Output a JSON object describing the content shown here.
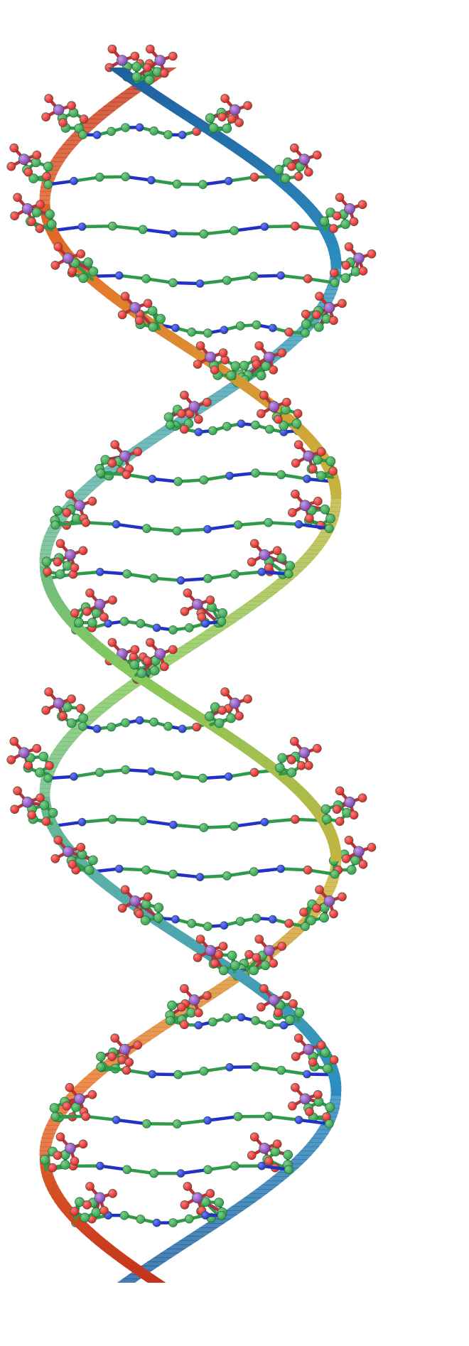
{
  "image": {
    "subject": "dna-double-helix-ball-and-stick",
    "strand_a": {
      "name": "backbone-ribbon-a",
      "gradient_colors": [
        "#c4321d",
        "#e8742a",
        "#c9b23c",
        "#86c95b",
        "#5bb0a8",
        "#2e8fbf",
        "#1f5f9e"
      ]
    },
    "strand_b": {
      "name": "backbone-ribbon-b",
      "gradient_colors": [
        "#1f5f9e",
        "#2e8fbf",
        "#5bb0a8",
        "#86c95b",
        "#c9b23c",
        "#e8742a",
        "#c4321d"
      ]
    },
    "atom_colors": {
      "carbon": "#2f9a4a",
      "carbon_highlight": "#7fd08a",
      "nitrogen": "#2230c8",
      "nitrogen_highlight": "#6f7dff",
      "oxygen": "#d42020",
      "oxygen_highlight": "#ff8080",
      "phosphorus": "#7a3aa8",
      "phosphorus_highlight": "#c69be8",
      "bond": "#2f9a4a"
    },
    "base_pair_count": 24
  }
}
